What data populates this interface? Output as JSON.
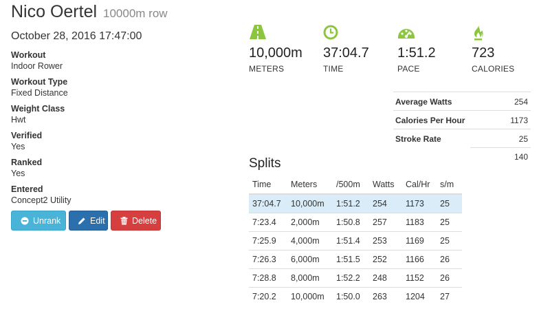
{
  "header": {
    "athlete": "Nico Oertel",
    "workout_desc": "10000m row"
  },
  "date": "October 28, 2016 17:47:00",
  "details": [
    {
      "label": "Workout",
      "value": "Indoor Rower"
    },
    {
      "label": "Workout Type",
      "value": "Fixed Distance"
    },
    {
      "label": "Weight Class",
      "value": "Hwt"
    },
    {
      "label": "Verified",
      "value": "Yes"
    },
    {
      "label": "Ranked",
      "value": "Yes"
    },
    {
      "label": "Entered",
      "value": "Concept2 Utility"
    }
  ],
  "buttons": {
    "unrank": "Unrank",
    "edit": "Edit",
    "delete": "Delete"
  },
  "stats": [
    {
      "icon": "road-icon",
      "value": "10,000m",
      "label": "METERS"
    },
    {
      "icon": "clock-icon",
      "value": "37:04.7",
      "label": "TIME"
    },
    {
      "icon": "speedometer-icon",
      "value": "1:51.2",
      "label": "PACE"
    },
    {
      "icon": "flame-icon",
      "value": "723",
      "label": "CALORIES"
    }
  ],
  "metrics": [
    {
      "label": "Average Watts",
      "value": "254"
    },
    {
      "label": "Calories Per Hour",
      "value": "1173"
    },
    {
      "label": "Stroke Rate",
      "value": "25"
    },
    {
      "label": "",
      "value": "140"
    }
  ],
  "splits": {
    "title": "Splits",
    "headers": [
      "Time",
      "Meters",
      "/500m",
      "Watts",
      "Cal/Hr",
      "s/m"
    ],
    "rows": [
      [
        "37:04.7",
        "10,000m",
        "1:51.2",
        "254",
        "1173",
        "25"
      ],
      [
        "7:23.4",
        "2,000m",
        "1:50.8",
        "257",
        "1183",
        "25"
      ],
      [
        "7:25.9",
        "4,000m",
        "1:51.4",
        "253",
        "1169",
        "25"
      ],
      [
        "7:26.3",
        "6,000m",
        "1:51.5",
        "252",
        "1166",
        "26"
      ],
      [
        "7:28.8",
        "8,000m",
        "1:52.2",
        "248",
        "1152",
        "26"
      ],
      [
        "7:20.2",
        "10,000m",
        "1:50.0",
        "263",
        "1204",
        "27"
      ]
    ]
  },
  "colors": {
    "accent": "#8cc63f",
    "unrank": "#4ab3d8",
    "edit": "#2c6fad",
    "delete": "#d53f3f",
    "highlight": "#d9ecf7"
  }
}
